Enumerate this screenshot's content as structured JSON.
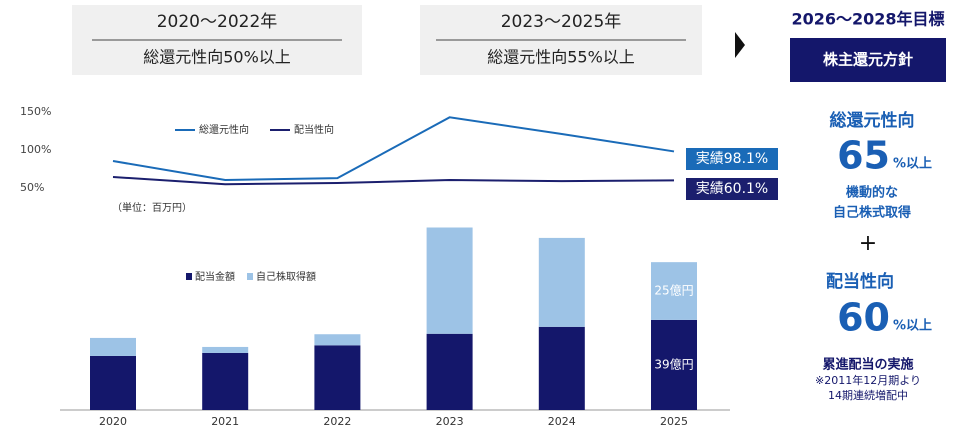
{
  "header": {
    "periods": [
      {
        "years": "2020～2022年",
        "policy": "総還元性向50%以上"
      },
      {
        "years": "2023～2025年",
        "policy": "総還元性向55%以上"
      }
    ]
  },
  "target": {
    "title": "2026～2028年目標",
    "badge": "株主還元方針",
    "total_label": "総還元性向",
    "total_value": "65",
    "total_suffix": "%以上",
    "buyback_line1": "機動的な",
    "buyback_line2": "自己株式取得",
    "plus": "+",
    "payout_label": "配当性向",
    "payout_value": "60",
    "payout_suffix": "%以上",
    "dividend_title": "累進配当の実施",
    "dividend_note1": "※2011年12月期より",
    "dividend_note2": "14期連続増配中"
  },
  "chart_data": [
    {
      "type": "line",
      "categories": [
        null,
        null,
        null,
        null,
        null,
        null
      ],
      "series": [
        {
          "name": "総還元性向",
          "color": "#1a6bb8",
          "values": [
            85.5,
            60.5,
            63,
            143,
            121,
            98.1
          ]
        },
        {
          "name": "配当性向",
          "color": "#1b1f6e",
          "values": [
            64.5,
            55,
            56.5,
            60.5,
            59,
            60.1
          ]
        }
      ],
      "ylim": [
        40,
        150
      ],
      "yticks": [
        {
          "value": 50,
          "label": "50%"
        },
        {
          "value": 100,
          "label": "100%"
        },
        {
          "value": 150,
          "label": "150%"
        }
      ],
      "annotations": [
        "実績98.1%",
        "実績60.1%"
      ]
    },
    {
      "type": "bar",
      "stacked": true,
      "subtitle": "（単位：百万円）",
      "categories": [
        "2020",
        "2021",
        "2022",
        "2023",
        "2024",
        "2025"
      ],
      "series": [
        {
          "name": "配当金額",
          "color": "#14176b",
          "values": [
            23.4,
            24.7,
            28,
            33,
            36,
            39
          ],
          "value_labels": [
            null,
            null,
            null,
            null,
            null,
            "39億円"
          ]
        },
        {
          "name": "自己株取得額",
          "color": "#9dc3e6",
          "values": [
            7.8,
            2.6,
            4.8,
            46,
            38.5,
            25
          ],
          "value_labels": [
            null,
            null,
            null,
            null,
            null,
            "25億円"
          ]
        }
      ]
    }
  ]
}
